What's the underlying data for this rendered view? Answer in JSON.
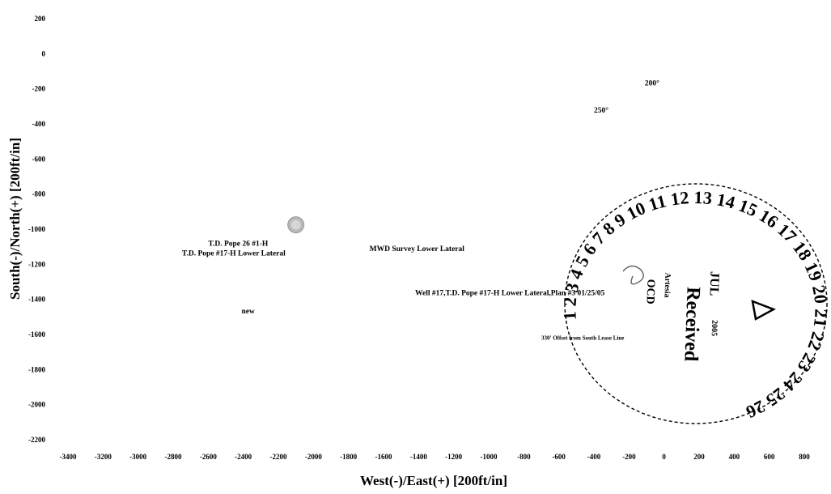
{
  "chart_data": {
    "type": "scatter",
    "title": "",
    "xlabel": "West(-)/East(+) [200ft/in]",
    "ylabel": "South(-)/North(+) [200ft/in]",
    "xlim": [
      -3400,
      800
    ],
    "ylim": [
      -2200,
      200
    ],
    "x_ticks": [
      "-3400",
      "-3200",
      "-3000",
      "-2800",
      "-2600",
      "-2400",
      "-2200",
      "-2000",
      "-1800",
      "-1600",
      "-1400",
      "-1200",
      "-1000",
      "-800",
      "-600",
      "-400",
      "-200",
      "0",
      "200",
      "400",
      "600",
      "800"
    ],
    "y_ticks": [
      "200",
      "0",
      "-200",
      "-400",
      "-600",
      "-800",
      "-1000",
      "-1200",
      "-1400",
      "-1600",
      "-1800",
      "-2000",
      "-2200"
    ],
    "grid": false,
    "points": [
      {
        "label": "",
        "x": -2100,
        "y": -975
      }
    ],
    "annotations": [
      {
        "text": "200°",
        "x": -110,
        "y": -180
      },
      {
        "text": "250°",
        "x": -400,
        "y": -335
      },
      {
        "text": "T.D. Pope 26 #1-H",
        "x": -2600,
        "y": -1095
      },
      {
        "text": "T.D. Pope #17-H Lower Lateral",
        "x": -2750,
        "y": -1150
      },
      {
        "text": "MWD Survey Lower Lateral",
        "x": -1680,
        "y": -1125
      },
      {
        "text": "Well #17,T.D. Pope #17-H Lower Lateral,Plan #3 01/25/05",
        "x": -1420,
        "y": -1375
      },
      {
        "text": "new",
        "x": -2410,
        "y": -1480
      },
      {
        "text": "330' Offset from South Lease Line",
        "x": -700,
        "y": -1630
      }
    ]
  },
  "stamp": {
    "ring_numbers": "1  2  3  4  5  6  7  8  9  10  11  12  13  14  15  16  17  18  19  20  21  22  23  24  25  26",
    "word_received": "Received",
    "word_jul": "JUL",
    "word_ocd": "OCD",
    "mark_small_1": "2005",
    "mark_small_2": "Artesia"
  }
}
